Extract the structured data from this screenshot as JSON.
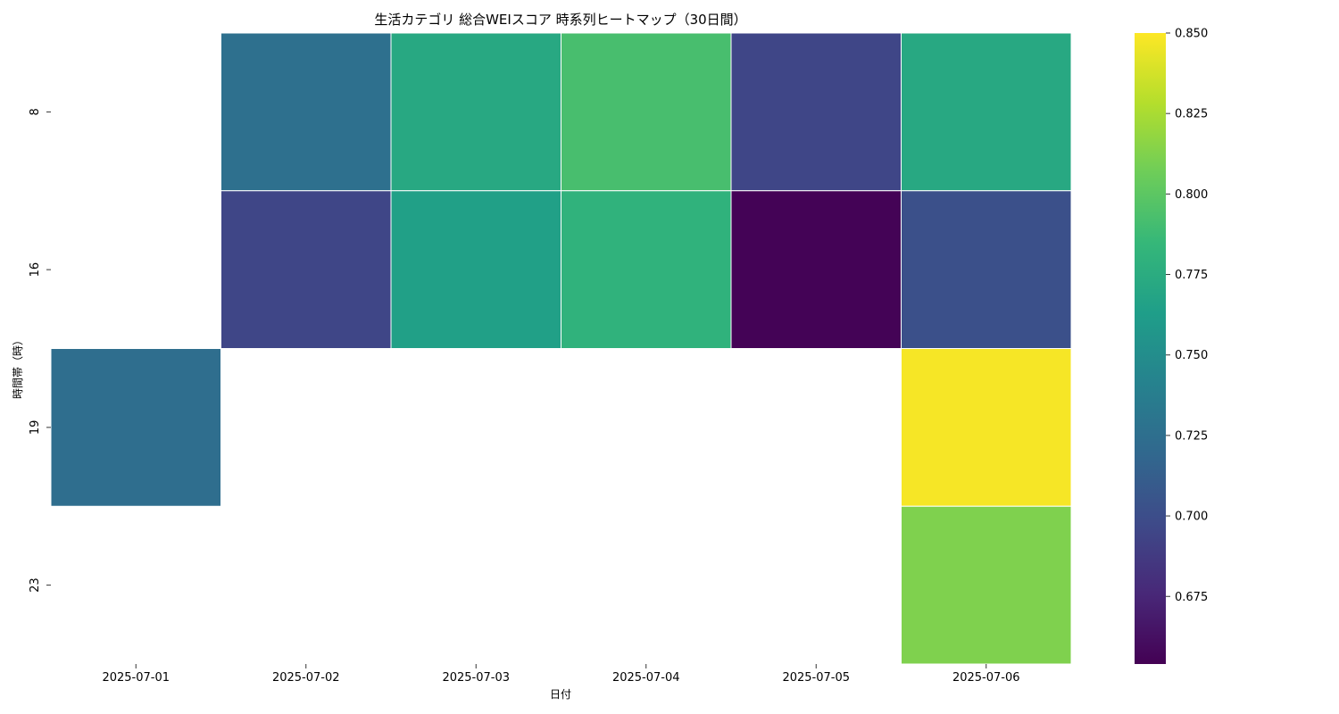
{
  "chart_data": {
    "type": "heatmap",
    "title": "生活カテゴリ 総合WEIスコア 時系列ヒートマップ（30日間）",
    "xlabel": "日付",
    "ylabel": "時間帯（時）",
    "x_categories": [
      "2025-07-01",
      "2025-07-02",
      "2025-07-03",
      "2025-07-04",
      "2025-07-05",
      "2025-07-06"
    ],
    "y_categories": [
      "8",
      "16",
      "19",
      "23"
    ],
    "values": [
      [
        null,
        0.726,
        0.772,
        0.792,
        0.695,
        0.772
      ],
      [
        null,
        0.695,
        0.765,
        0.78,
        0.655,
        0.702
      ],
      [
        0.724,
        null,
        null,
        null,
        null,
        0.848
      ],
      [
        null,
        null,
        null,
        null,
        null,
        0.812
      ]
    ],
    "colormap": "viridis",
    "vmin": 0.654,
    "vmax": 0.85,
    "colorbar_ticks": [
      "0.675",
      "0.700",
      "0.725",
      "0.750",
      "0.775",
      "0.800",
      "0.825",
      "0.850"
    ],
    "missing_color": "#ffffff",
    "grid_color": "#ffffff"
  }
}
